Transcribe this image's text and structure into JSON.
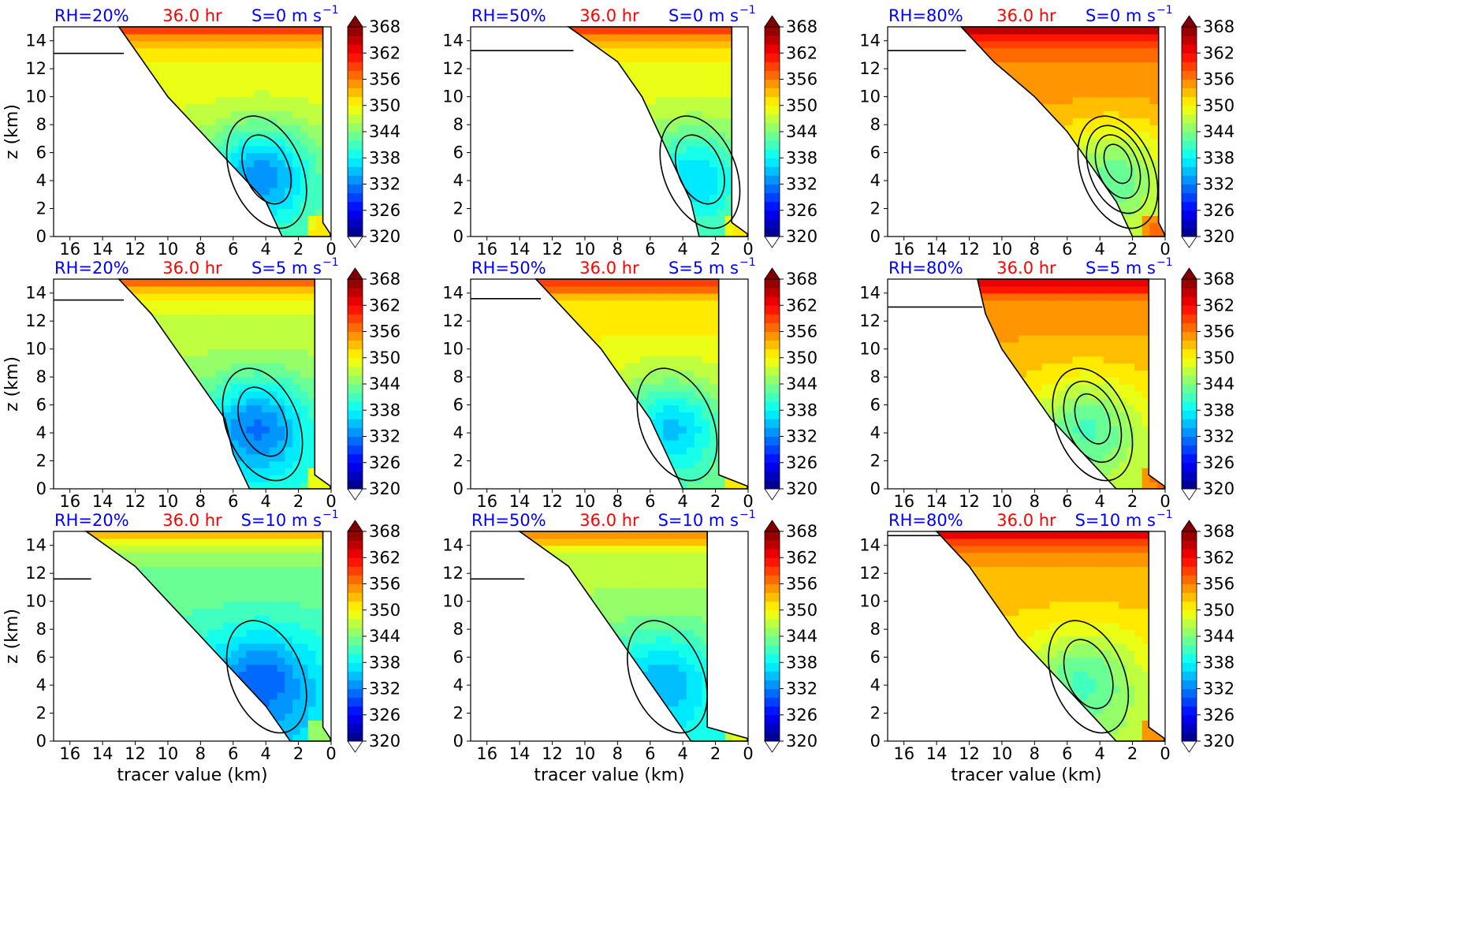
{
  "figure": {
    "rows": [
      {
        "shear_label": "S=0 m s",
        "superscript": "−1"
      },
      {
        "shear_label": "S=5 m s",
        "superscript": "−1"
      },
      {
        "shear_label": "S=10 m s",
        "superscript": "−1"
      }
    ],
    "columns": [
      {
        "rh_label": "RH=20%"
      },
      {
        "rh_label": "RH=50%"
      },
      {
        "rh_label": "RH=80%"
      }
    ],
    "time_label": "36.0 hr",
    "colors": {
      "rh_label": "#0000ff",
      "time_label": "#ff0000",
      "shear_label": "#0000ff",
      "contour": "#000000",
      "axes": "#000000"
    }
  },
  "chart_data": {
    "type": "heatmap",
    "panel_count": 9,
    "xlabel": "tracer value (km)",
    "ylabel": "z (km)",
    "xlim": [
      17,
      0
    ],
    "ylim": [
      0,
      15
    ],
    "xticks": [
      16,
      14,
      12,
      10,
      8,
      6,
      4,
      2,
      0
    ],
    "yticks": [
      0,
      2,
      4,
      6,
      8,
      10,
      12,
      14
    ],
    "colorbar": {
      "min": 320,
      "max": 368,
      "ticks": [
        320,
        326,
        332,
        338,
        344,
        350,
        356,
        362,
        368
      ],
      "extend": "both",
      "colormap": "jet"
    },
    "panels": [
      {
        "rh": "RH=20%",
        "shear": "S=0 m s−1",
        "time": "36.0 hr",
        "row": 0,
        "col": 0,
        "left_edge_x": [
          13,
          11.5,
          10,
          8,
          6,
          4,
          3
        ],
        "top_z": 15,
        "tropopause_z": 13.1,
        "right_edge_x": 0.5,
        "fill_center": 347,
        "fill_low_region": 334,
        "contour_rings": 2
      },
      {
        "rh": "RH=50%",
        "shear": "S=0 m s−1",
        "time": "36.0 hr",
        "row": 0,
        "col": 1,
        "left_edge_x": [
          11,
          8,
          6.5,
          5.5,
          4.5,
          3.5,
          3
        ],
        "top_z": 15,
        "tropopause_z": 13.3,
        "right_edge_x": 1,
        "fill_center": 347,
        "fill_low_region": 338,
        "contour_rings": 2
      },
      {
        "rh": "RH=80%",
        "shear": "S=0 m s−1",
        "time": "36.0 hr",
        "row": 0,
        "col": 2,
        "left_edge_x": [
          12.5,
          10.5,
          8,
          6,
          4.5,
          3,
          2
        ],
        "top_z": 15,
        "tropopause_z": 13.3,
        "right_edge_x": 0.4,
        "fill_center": 353,
        "fill_low_region": 344,
        "contour_rings": 4
      },
      {
        "rh": "RH=20%",
        "shear": "S=5 m s−1",
        "time": "36.0 hr",
        "row": 1,
        "col": 0,
        "left_edge_x": [
          13,
          11,
          9.5,
          8,
          6.5,
          6,
          5
        ],
        "top_z": 15,
        "tropopause_z": 13.5,
        "right_edge_x": 1,
        "fill_center": 345,
        "fill_low_region": 333,
        "contour_rings": 2
      },
      {
        "rh": "RH=50%",
        "shear": "S=5 m s−1",
        "time": "36.0 hr",
        "row": 1,
        "col": 1,
        "left_edge_x": [
          13,
          11,
          9,
          7.5,
          6,
          5,
          4
        ],
        "top_z": 15,
        "tropopause_z": 13.6,
        "right_edge_x": 1.8,
        "fill_center": 348,
        "fill_low_region": 337,
        "contour_rings": 1
      },
      {
        "rh": "RH=80%",
        "shear": "S=5 m s−1",
        "time": "36.0 hr",
        "row": 1,
        "col": 2,
        "left_edge_x": [
          11.5,
          11,
          10,
          8.5,
          7,
          5,
          3
        ],
        "top_z": 15,
        "tropopause_z": 13.0,
        "right_edge_x": 1,
        "fill_center": 352,
        "fill_low_region": 343,
        "contour_rings": 3
      },
      {
        "rh": "RH=20%",
        "shear": "S=10 m s−1",
        "time": "36.0 hr",
        "row": 2,
        "col": 0,
        "left_edge_x": [
          15,
          12,
          10,
          8,
          6,
          4,
          2.5
        ],
        "top_z": 15,
        "tropopause_z": 11.6,
        "right_edge_x": 0.5,
        "fill_center": 341,
        "fill_low_region": 332,
        "contour_rings": 1
      },
      {
        "rh": "RH=50%",
        "shear": "S=10 m s−1",
        "time": "36.0 hr",
        "row": 2,
        "col": 1,
        "left_edge_x": [
          14,
          11,
          9.5,
          8,
          6.5,
          5,
          3.5
        ],
        "top_z": 15,
        "tropopause_z": 11.6,
        "right_edge_x": 2.5,
        "fill_center": 344,
        "fill_low_region": 336,
        "contour_rings": 1
      },
      {
        "rh": "RH=80%",
        "shear": "S=10 m s−1",
        "time": "36.0 hr",
        "row": 2,
        "col": 2,
        "left_edge_x": [
          14,
          12,
          10.5,
          9,
          7,
          5,
          3
        ],
        "top_z": 15,
        "tropopause_z": 14.7,
        "right_edge_x": 1,
        "fill_center": 351,
        "fill_low_region": 343,
        "contour_rings": 2
      }
    ]
  }
}
